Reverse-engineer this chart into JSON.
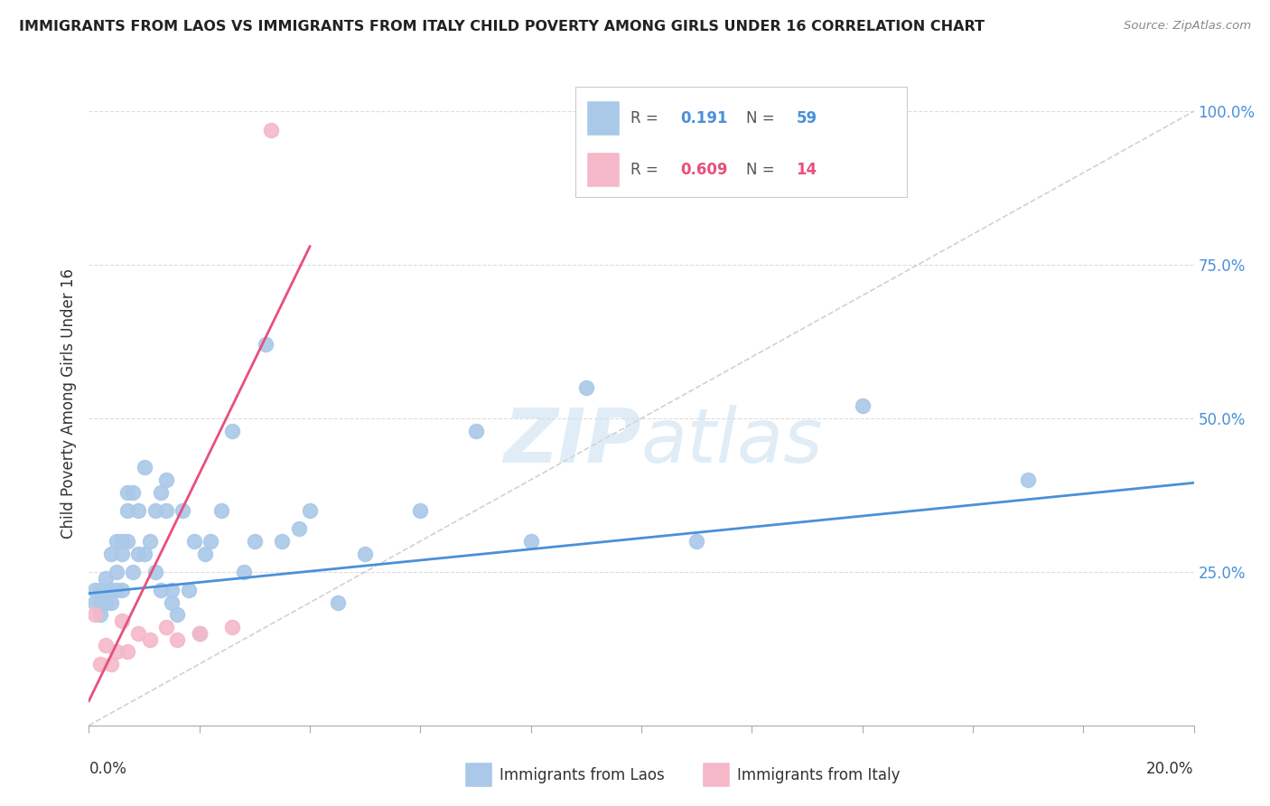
{
  "title": "IMMIGRANTS FROM LAOS VS IMMIGRANTS FROM ITALY CHILD POVERTY AMONG GIRLS UNDER 16 CORRELATION CHART",
  "source": "Source: ZipAtlas.com",
  "ylabel": "Child Poverty Among Girls Under 16",
  "watermark": "ZIPatlas",
  "laos_R": 0.191,
  "laos_N": 59,
  "italy_R": 0.609,
  "italy_N": 14,
  "laos_color": "#aac8e8",
  "italy_color": "#f5b8c8",
  "laos_line_color": "#4a90d9",
  "italy_line_color": "#e8507a",
  "ref_line_color": "#cccccc",
  "background_color": "#ffffff",
  "xmin": 0.0,
  "xmax": 0.2,
  "ymin": 0.0,
  "ymax": 1.05,
  "laos_x": [
    0.001,
    0.001,
    0.002,
    0.002,
    0.002,
    0.003,
    0.003,
    0.003,
    0.004,
    0.004,
    0.004,
    0.005,
    0.005,
    0.005,
    0.006,
    0.006,
    0.006,
    0.007,
    0.007,
    0.007,
    0.008,
    0.008,
    0.009,
    0.009,
    0.01,
    0.01,
    0.011,
    0.012,
    0.012,
    0.013,
    0.013,
    0.014,
    0.014,
    0.015,
    0.015,
    0.016,
    0.017,
    0.018,
    0.019,
    0.02,
    0.021,
    0.022,
    0.024,
    0.026,
    0.028,
    0.03,
    0.032,
    0.035,
    0.038,
    0.04,
    0.045,
    0.05,
    0.06,
    0.07,
    0.08,
    0.09,
    0.11,
    0.14,
    0.17
  ],
  "laos_y": [
    0.2,
    0.22,
    0.2,
    0.22,
    0.18,
    0.2,
    0.24,
    0.2,
    0.22,
    0.28,
    0.2,
    0.3,
    0.25,
    0.22,
    0.3,
    0.28,
    0.22,
    0.35,
    0.38,
    0.3,
    0.38,
    0.25,
    0.35,
    0.28,
    0.42,
    0.28,
    0.3,
    0.35,
    0.25,
    0.38,
    0.22,
    0.35,
    0.4,
    0.2,
    0.22,
    0.18,
    0.35,
    0.22,
    0.3,
    0.15,
    0.28,
    0.3,
    0.35,
    0.48,
    0.25,
    0.3,
    0.62,
    0.3,
    0.32,
    0.35,
    0.2,
    0.28,
    0.35,
    0.48,
    0.3,
    0.55,
    0.3,
    0.52,
    0.4
  ],
  "italy_x": [
    0.001,
    0.002,
    0.003,
    0.004,
    0.005,
    0.006,
    0.007,
    0.009,
    0.011,
    0.014,
    0.016,
    0.02,
    0.026,
    0.033
  ],
  "italy_y": [
    0.18,
    0.1,
    0.13,
    0.1,
    0.12,
    0.17,
    0.12,
    0.15,
    0.14,
    0.16,
    0.14,
    0.15,
    0.16,
    0.97
  ],
  "laos_line_x0": 0.0,
  "laos_line_x1": 0.2,
  "laos_line_y0": 0.215,
  "laos_line_y1": 0.395,
  "italy_line_x0": 0.0,
  "italy_line_x1": 0.04,
  "italy_line_y0": 0.04,
  "italy_line_y1": 0.78
}
